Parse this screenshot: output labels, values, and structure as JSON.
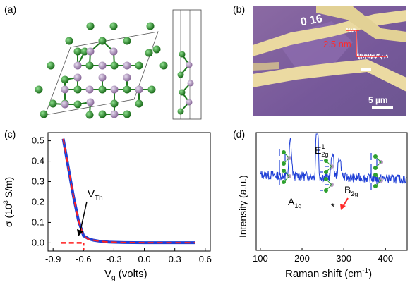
{
  "panels": {
    "a": {
      "label": "(a)"
    },
    "b": {
      "label": "(b)",
      "sample_text": "0 16",
      "height_label": "2.5 nm",
      "scalebar_label": "5 µm"
    },
    "c": {
      "label": "(c)",
      "annotation": {
        "main": "V",
        "sub": "Th"
      },
      "xlabel": {
        "main": "V",
        "sub": "g",
        "rest": " (volts)"
      },
      "ylabel": {
        "pre": "σ (10",
        "sup": "3",
        "post": " S/m)"
      },
      "xticks": [
        "-0.9",
        "-0.6",
        "-0.3",
        "0.0",
        "0.3",
        "0.6"
      ],
      "yticks": [
        "0.0",
        "0.1",
        "0.2",
        "0.3",
        "0.4",
        "0.5"
      ]
    },
    "d": {
      "label": "(d)",
      "xlabel": {
        "pre": "Raman shift (cm",
        "sup": "-1",
        "post": ")"
      },
      "ylabel": "Intensity (a.u.)",
      "xticks": [
        "100",
        "200",
        "300",
        "400"
      ],
      "peaks": {
        "a1g": {
          "main": "A",
          "sub": "1g"
        },
        "e2g": {
          "main": "E",
          "sup": "1",
          "sub": "2g"
        },
        "b2g": {
          "main": "B",
          "sub": "2g"
        },
        "star": "*"
      }
    }
  },
  "colors": {
    "fit_line": "#ff2020",
    "data_line": "#1f3fd6",
    "atom_green": "#1e8a1e",
    "atom_purple": "#a98ab0",
    "arrow_red": "#ff2a2a",
    "optical_bg": "#7a5a9a",
    "gold": "#e9d9a3"
  },
  "chart_data": [
    {
      "type": "line",
      "panel": "c",
      "xlim": [
        -0.9,
        0.6
      ],
      "ylim": [
        0.0,
        0.52
      ],
      "series": [
        {
          "x": [
            -0.8,
            -0.75,
            -0.7,
            -0.65,
            -0.6,
            -0.55,
            -0.5,
            -0.45,
            -0.4,
            -0.35,
            -0.3,
            -0.2,
            -0.1,
            0.0,
            0.1,
            0.2,
            0.3,
            0.4,
            0.5
          ],
          "y": [
            0.51,
            0.37,
            0.23,
            0.11,
            0.035,
            0.02,
            0.013,
            0.009,
            0.006,
            0.004,
            0.003,
            0.002,
            0.0015,
            0.001,
            0.001,
            0.001,
            0.001,
            0.001,
            0.001
          ]
        },
        {
          "x": [
            -0.8,
            -0.75,
            -0.7,
            -0.65,
            -0.6,
            -0.56,
            -0.54,
            -0.5,
            -0.45,
            -0.4,
            -0.35,
            -0.3,
            -0.2,
            -0.1,
            0.0,
            0.1,
            0.2,
            0.3,
            0.4,
            0.5
          ],
          "y": [
            0.51,
            0.37,
            0.23,
            0.11,
            0.035,
            0.02,
            0.015,
            0.013,
            0.009,
            0.006,
            0.004,
            0.003,
            0.002,
            0.0015,
            0.001,
            0.001,
            0.001,
            0.001,
            0.001,
            0.001
          ]
        }
      ],
      "threshold_line": {
        "x": [
          -0.82,
          -0.6
        ],
        "y": [
          0.0,
          0.0
        ]
      },
      "threshold_drop": {
        "x": -0.6,
        "y": [
          0.0,
          -0.02
        ]
      }
    },
    {
      "type": "line",
      "panel": "d",
      "xlim": [
        100,
        450
      ],
      "peaks_cm": [
        172,
        236,
        273,
        290
      ]
    }
  ]
}
